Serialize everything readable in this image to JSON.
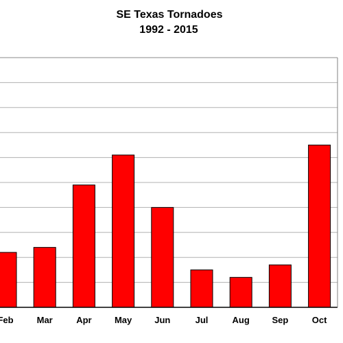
{
  "chart_data": {
    "type": "bar",
    "title": "SE Texas Tornadoes",
    "subtitle": "1992 - 2015",
    "categories": [
      "Feb",
      "Mar",
      "Apr",
      "May",
      "Jun",
      "Jul",
      "Aug",
      "Sep",
      "Oct"
    ],
    "values": [
      22,
      24,
      49,
      61,
      40,
      15,
      12,
      17,
      65
    ],
    "xlabel": "",
    "ylabel": "",
    "ylim": [
      0,
      100
    ],
    "grid": true,
    "bar_color": "#ff0000",
    "grid_color": "#b0b0b0"
  }
}
